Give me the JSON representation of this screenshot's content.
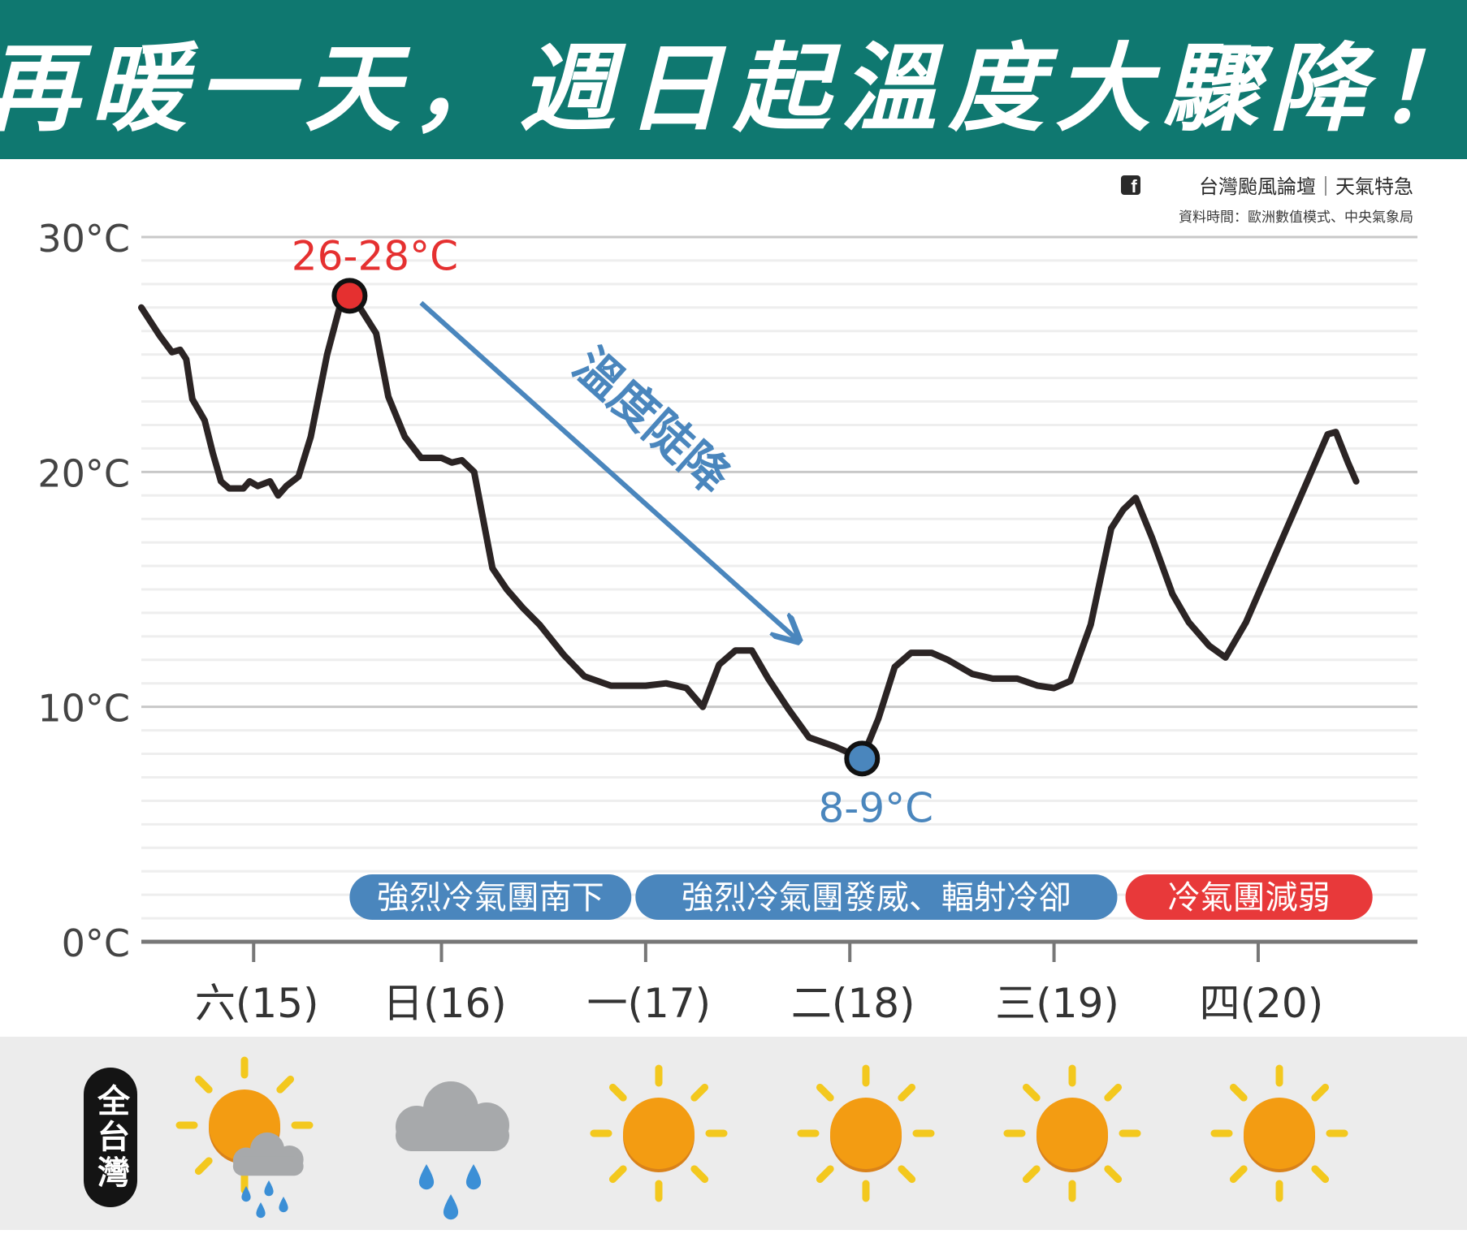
{
  "header": {
    "title": "再暖一天，週日起溫度大驟降！"
  },
  "credits": {
    "source_icon": "facebook-icon",
    "source_line": "台灣颱風論壇｜天氣特急",
    "data_line": "資料時間：歐洲數值模式、中央氣象局"
  },
  "chart_data": {
    "type": "line",
    "title": "",
    "xlabel": "",
    "ylabel": "",
    "ylim": [
      0,
      30
    ],
    "y_ticks": [
      0,
      10,
      20,
      30
    ],
    "y_tick_labels": [
      "0°C",
      "10°C",
      "20°C",
      "30°C"
    ],
    "x_unit": "days (六(15) 00h = 0)",
    "x_range": [
      -0.55,
      5.7
    ],
    "categories": [
      "六(15)",
      "日(16)",
      "一(17)",
      "二(18)",
      "三(19)",
      "四(20)"
    ],
    "category_positions": [
      0.0,
      0.92,
      1.92,
      2.92,
      3.92,
      4.92
    ],
    "grid": true,
    "series": [
      {
        "color": "#2b2424",
        "points": [
          [
            -0.55,
            27.0
          ],
          [
            -0.46,
            25.8
          ],
          [
            -0.4,
            25.1
          ],
          [
            -0.36,
            25.2
          ],
          [
            -0.33,
            24.8
          ],
          [
            -0.3,
            23.1
          ],
          [
            -0.24,
            22.2
          ],
          [
            -0.2,
            20.8
          ],
          [
            -0.16,
            19.6
          ],
          [
            -0.12,
            19.3
          ],
          [
            -0.05,
            19.3
          ],
          [
            -0.02,
            19.6
          ],
          [
            0.02,
            19.4
          ],
          [
            0.08,
            19.6
          ],
          [
            0.12,
            19.0
          ],
          [
            0.16,
            19.4
          ],
          [
            0.22,
            19.8
          ],
          [
            0.28,
            21.5
          ],
          [
            0.36,
            25.0
          ],
          [
            0.43,
            27.3
          ],
          [
            0.47,
            27.5
          ],
          [
            0.52,
            27.0
          ],
          [
            0.6,
            25.9
          ],
          [
            0.66,
            23.2
          ],
          [
            0.74,
            21.5
          ],
          [
            0.82,
            20.6
          ],
          [
            0.92,
            20.6
          ],
          [
            0.97,
            20.4
          ],
          [
            1.02,
            20.5
          ],
          [
            1.08,
            20.0
          ],
          [
            1.17,
            15.9
          ],
          [
            1.24,
            15.0
          ],
          [
            1.32,
            14.2
          ],
          [
            1.4,
            13.5
          ],
          [
            1.52,
            12.2
          ],
          [
            1.62,
            11.3
          ],
          [
            1.75,
            10.9
          ],
          [
            1.92,
            10.9
          ],
          [
            2.02,
            11.0
          ],
          [
            2.12,
            10.8
          ],
          [
            2.2,
            10.0
          ],
          [
            2.28,
            11.8
          ],
          [
            2.36,
            12.4
          ],
          [
            2.44,
            12.4
          ],
          [
            2.52,
            11.2
          ],
          [
            2.62,
            9.9
          ],
          [
            2.72,
            8.7
          ],
          [
            2.85,
            8.3
          ],
          [
            2.98,
            7.8
          ],
          [
            3.06,
            9.5
          ],
          [
            3.14,
            11.7
          ],
          [
            3.22,
            12.3
          ],
          [
            3.32,
            12.3
          ],
          [
            3.4,
            12.0
          ],
          [
            3.52,
            11.4
          ],
          [
            3.62,
            11.2
          ],
          [
            3.74,
            11.2
          ],
          [
            3.84,
            10.9
          ],
          [
            3.92,
            10.8
          ],
          [
            4.0,
            11.1
          ],
          [
            4.1,
            13.5
          ],
          [
            4.2,
            17.6
          ],
          [
            4.26,
            18.4
          ],
          [
            4.32,
            18.9
          ],
          [
            4.4,
            17.2
          ],
          [
            4.5,
            14.8
          ],
          [
            4.58,
            13.6
          ],
          [
            4.68,
            12.6
          ],
          [
            4.76,
            12.1
          ],
          [
            4.86,
            13.6
          ],
          [
            4.96,
            15.6
          ],
          [
            5.06,
            17.6
          ],
          [
            5.16,
            19.6
          ],
          [
            5.26,
            21.6
          ],
          [
            5.3,
            21.7
          ],
          [
            5.36,
            20.4
          ],
          [
            5.4,
            19.6
          ]
        ]
      }
    ],
    "markers": [
      {
        "kind": "max",
        "x": 0.47,
        "y": 27.5,
        "label": "26-28°C",
        "color": "#e53030"
      },
      {
        "kind": "min",
        "x": 2.98,
        "y": 7.8,
        "label": "8-9°C",
        "color": "#4a86bd"
      }
    ],
    "trend_annotation": {
      "label": "溫度陡降",
      "color": "#4a86bd",
      "from": [
        0.82,
        27.2
      ],
      "to": [
        2.67,
        12.8
      ]
    },
    "phase_badges": [
      {
        "label": "強烈冷氣團南下",
        "color": "#4a86bd",
        "x_start": 0.47,
        "x_end": 1.85
      },
      {
        "label": "強烈冷氣團發威、輻射冷卻",
        "color": "#4a86bd",
        "x_start": 1.87,
        "x_end": 4.23
      },
      {
        "label": "冷氣團減弱",
        "color": "#e8393a",
        "x_start": 4.27,
        "x_end": 5.48
      }
    ]
  },
  "forecast": {
    "region_label": "全台灣",
    "days": [
      {
        "day": "六(15)",
        "icon": "sun-cloud-rain-icon"
      },
      {
        "day": "日(16)",
        "icon": "rain-cloud-icon"
      },
      {
        "day": "一(17)",
        "icon": "sun-icon"
      },
      {
        "day": "二(18)",
        "icon": "sun-icon"
      },
      {
        "day": "三(19)",
        "icon": "sun-icon"
      },
      {
        "day": "四(20)",
        "icon": "sun-icon"
      }
    ],
    "colors": {
      "sun": "#f39c12",
      "ray": "#f3c81e",
      "cloud": "#a7a9ab",
      "drop": "#3b8fd6"
    }
  }
}
